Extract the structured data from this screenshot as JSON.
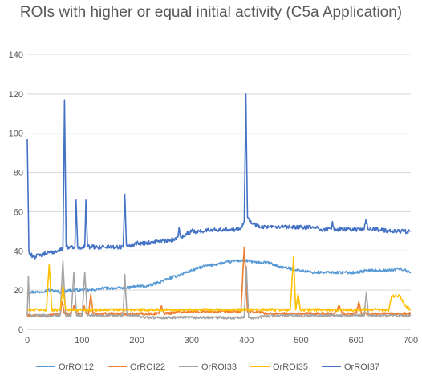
{
  "chart_data": {
    "type": "line",
    "title": "ROIs with higher or equal initial activity (C5a Application)",
    "xlabel": "",
    "ylabel": "",
    "xlim": [
      0,
      700
    ],
    "ylim": [
      0,
      140
    ],
    "x_ticks": [
      0,
      100,
      200,
      300,
      400,
      500,
      600,
      700
    ],
    "y_ticks": [
      0,
      20,
      40,
      60,
      80,
      100,
      120,
      140
    ],
    "grid": "horizontal",
    "legend_position": "bottom",
    "series": [
      {
        "name": "OrROI12",
        "color": "#5B9BD5",
        "points": [
          [
            0,
            19
          ],
          [
            20,
            19
          ],
          [
            40,
            20
          ],
          [
            60,
            19
          ],
          [
            80,
            20
          ],
          [
            100,
            20
          ],
          [
            120,
            20
          ],
          [
            140,
            21
          ],
          [
            160,
            21
          ],
          [
            180,
            21
          ],
          [
            200,
            22
          ],
          [
            220,
            22
          ],
          [
            240,
            24
          ],
          [
            260,
            26
          ],
          [
            280,
            28
          ],
          [
            300,
            30
          ],
          [
            320,
            32
          ],
          [
            340,
            33
          ],
          [
            360,
            34
          ],
          [
            380,
            35
          ],
          [
            400,
            35
          ],
          [
            420,
            34
          ],
          [
            440,
            34
          ],
          [
            460,
            32
          ],
          [
            480,
            31
          ],
          [
            500,
            30
          ],
          [
            520,
            29
          ],
          [
            540,
            29
          ],
          [
            560,
            29
          ],
          [
            580,
            29
          ],
          [
            600,
            29
          ],
          [
            620,
            30
          ],
          [
            640,
            30
          ],
          [
            660,
            30
          ],
          [
            680,
            31
          ],
          [
            700,
            29
          ]
        ]
      },
      {
        "name": "OrROI22",
        "color": "#ED7D31",
        "points": [
          [
            0,
            7
          ],
          [
            20,
            7
          ],
          [
            40,
            7
          ],
          [
            60,
            8
          ],
          [
            64,
            14
          ],
          [
            68,
            8
          ],
          [
            80,
            8
          ],
          [
            85,
            12
          ],
          [
            90,
            8
          ],
          [
            100,
            8
          ],
          [
            104,
            12
          ],
          [
            108,
            8
          ],
          [
            112,
            8
          ],
          [
            116,
            18
          ],
          [
            120,
            8
          ],
          [
            140,
            8
          ],
          [
            160,
            8
          ],
          [
            180,
            8
          ],
          [
            200,
            8
          ],
          [
            240,
            8
          ],
          [
            245,
            12
          ],
          [
            250,
            8
          ],
          [
            280,
            9
          ],
          [
            300,
            9
          ],
          [
            320,
            9
          ],
          [
            340,
            9
          ],
          [
            360,
            9
          ],
          [
            380,
            9
          ],
          [
            390,
            9
          ],
          [
            396,
            42
          ],
          [
            402,
            9
          ],
          [
            420,
            9
          ],
          [
            440,
            8
          ],
          [
            460,
            8
          ],
          [
            480,
            8
          ],
          [
            500,
            8
          ],
          [
            520,
            8
          ],
          [
            540,
            8
          ],
          [
            560,
            8
          ],
          [
            570,
            12
          ],
          [
            575,
            8
          ],
          [
            600,
            8
          ],
          [
            605,
            14
          ],
          [
            610,
            8
          ],
          [
            640,
            8
          ],
          [
            660,
            8
          ],
          [
            680,
            8
          ],
          [
            700,
            8
          ]
        ]
      },
      {
        "name": "OrROI33",
        "color": "#A5A5A5",
        "points": [
          [
            0,
            7
          ],
          [
            2,
            27
          ],
          [
            5,
            7
          ],
          [
            20,
            7
          ],
          [
            40,
            7
          ],
          [
            60,
            7
          ],
          [
            65,
            35
          ],
          [
            70,
            7
          ],
          [
            80,
            7
          ],
          [
            85,
            29
          ],
          [
            90,
            7
          ],
          [
            100,
            7
          ],
          [
            105,
            29
          ],
          [
            110,
            7
          ],
          [
            140,
            7
          ],
          [
            160,
            7
          ],
          [
            175,
            7
          ],
          [
            178,
            28
          ],
          [
            182,
            7
          ],
          [
            200,
            7
          ],
          [
            220,
            6
          ],
          [
            240,
            6
          ],
          [
            260,
            6
          ],
          [
            280,
            6
          ],
          [
            300,
            6
          ],
          [
            320,
            6
          ],
          [
            340,
            6
          ],
          [
            360,
            6
          ],
          [
            380,
            6
          ],
          [
            396,
            6
          ],
          [
            400,
            32
          ],
          [
            404,
            6
          ],
          [
            420,
            6
          ],
          [
            440,
            7
          ],
          [
            460,
            7
          ],
          [
            480,
            7
          ],
          [
            500,
            7
          ],
          [
            520,
            7
          ],
          [
            540,
            7
          ],
          [
            560,
            7
          ],
          [
            580,
            7
          ],
          [
            600,
            7
          ],
          [
            615,
            7
          ],
          [
            619,
            19
          ],
          [
            623,
            7
          ],
          [
            640,
            7
          ],
          [
            660,
            7
          ],
          [
            680,
            7
          ],
          [
            700,
            7
          ]
        ]
      },
      {
        "name": "OrROI35",
        "color": "#FFC000",
        "points": [
          [
            0,
            10
          ],
          [
            20,
            10
          ],
          [
            35,
            10
          ],
          [
            40,
            33
          ],
          [
            45,
            10
          ],
          [
            60,
            10
          ],
          [
            65,
            22
          ],
          [
            70,
            10
          ],
          [
            80,
            10
          ],
          [
            100,
            10
          ],
          [
            120,
            10
          ],
          [
            140,
            10
          ],
          [
            160,
            10
          ],
          [
            180,
            10
          ],
          [
            200,
            10
          ],
          [
            220,
            10
          ],
          [
            240,
            10
          ],
          [
            260,
            10
          ],
          [
            280,
            10
          ],
          [
            300,
            10
          ],
          [
            320,
            10
          ],
          [
            340,
            10
          ],
          [
            360,
            10
          ],
          [
            380,
            10
          ],
          [
            400,
            10
          ],
          [
            420,
            10
          ],
          [
            440,
            10
          ],
          [
            460,
            10
          ],
          [
            480,
            10
          ],
          [
            486,
            37
          ],
          [
            490,
            10
          ],
          [
            494,
            18
          ],
          [
            498,
            10
          ],
          [
            520,
            10
          ],
          [
            540,
            10
          ],
          [
            560,
            10
          ],
          [
            580,
            10
          ],
          [
            600,
            10
          ],
          [
            620,
            10
          ],
          [
            640,
            10
          ],
          [
            660,
            10
          ],
          [
            665,
            17
          ],
          [
            680,
            17
          ],
          [
            690,
            12
          ],
          [
            700,
            10
          ]
        ]
      },
      {
        "name": "OrROI37",
        "color": "#4472C4",
        "points": [
          [
            0,
            97
          ],
          [
            3,
            40
          ],
          [
            6,
            38
          ],
          [
            15,
            37
          ],
          [
            25,
            38
          ],
          [
            40,
            39
          ],
          [
            55,
            40
          ],
          [
            65,
            41
          ],
          [
            68,
            117
          ],
          [
            71,
            42
          ],
          [
            80,
            42
          ],
          [
            87,
            42
          ],
          [
            89,
            66
          ],
          [
            92,
            42
          ],
          [
            100,
            42
          ],
          [
            105,
            42
          ],
          [
            107,
            66
          ],
          [
            110,
            42
          ],
          [
            140,
            42
          ],
          [
            160,
            42
          ],
          [
            175,
            42
          ],
          [
            178,
            69
          ],
          [
            181,
            43
          ],
          [
            190,
            43
          ],
          [
            200,
            44
          ],
          [
            220,
            44
          ],
          [
            240,
            45
          ],
          [
            260,
            45
          ],
          [
            275,
            47
          ],
          [
            277,
            52
          ],
          [
            280,
            47
          ],
          [
            300,
            50
          ],
          [
            320,
            50
          ],
          [
            340,
            51
          ],
          [
            360,
            51
          ],
          [
            380,
            51
          ],
          [
            390,
            52
          ],
          [
            396,
            55
          ],
          [
            399,
            120
          ],
          [
            402,
            57
          ],
          [
            410,
            54
          ],
          [
            420,
            53
          ],
          [
            440,
            52
          ],
          [
            460,
            52
          ],
          [
            480,
            52
          ],
          [
            500,
            52
          ],
          [
            520,
            52
          ],
          [
            540,
            51
          ],
          [
            555,
            51
          ],
          [
            557,
            55
          ],
          [
            560,
            51
          ],
          [
            580,
            51
          ],
          [
            600,
            51
          ],
          [
            615,
            51
          ],
          [
            618,
            56
          ],
          [
            622,
            51
          ],
          [
            640,
            51
          ],
          [
            660,
            50
          ],
          [
            680,
            50
          ],
          [
            700,
            50
          ]
        ]
      }
    ]
  }
}
